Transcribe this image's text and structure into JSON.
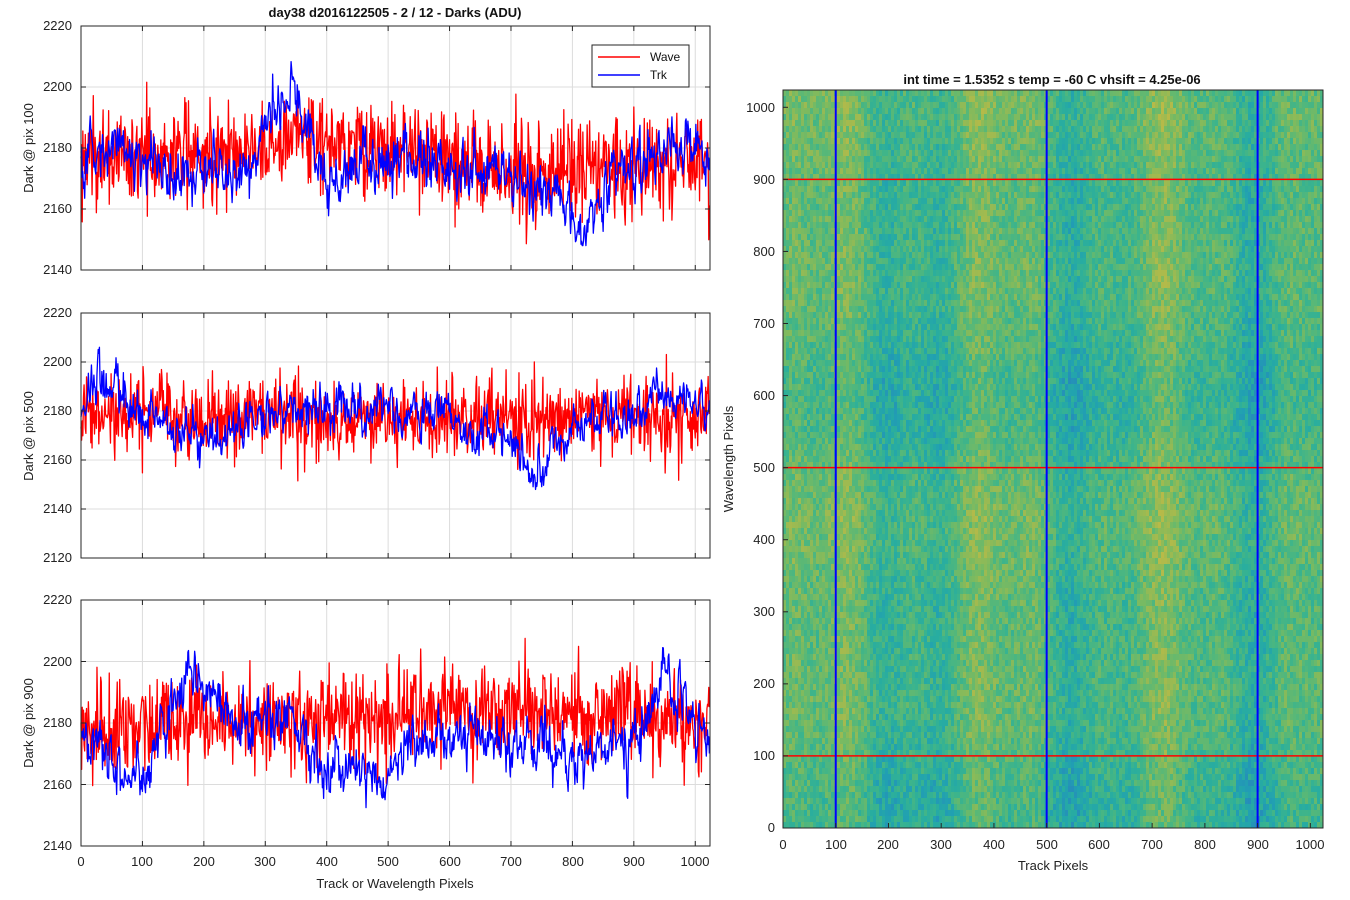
{
  "figure_title": "day38 d2016122505 - 2 / 12 - Darks (ADU)",
  "colors": {
    "wave": "#ff0000",
    "trk": "#0000ff",
    "grid": "#dcdcdc",
    "axis": "#262626"
  },
  "chart_data": [
    {
      "type": "line",
      "title": "day38 d2016122505 - 2 / 12 - Darks (ADU)",
      "xlabel": "",
      "ylabel": "Dark @ pix 100",
      "xlim": [
        0,
        1024
      ],
      "ylim": [
        2140,
        2220
      ],
      "xticks": [
        0,
        100,
        200,
        300,
        400,
        500,
        600,
        700,
        800,
        900,
        1000
      ],
      "yticks": [
        2140,
        2160,
        2180,
        2200,
        2220
      ],
      "grid": true,
      "legend": {
        "position": "top-right",
        "entries": [
          "Wave",
          "Trk"
        ]
      },
      "series": [
        {
          "name": "Wave",
          "color": "#ff0000",
          "mean": 2176,
          "noise": 10,
          "min": 2144,
          "max": 2213,
          "anchors": [
            [
              0,
              2176
            ],
            [
              300,
              2180
            ],
            [
              350,
              2185
            ],
            [
              700,
              2172
            ],
            [
              1024,
              2176
            ]
          ]
        },
        {
          "name": "Trk",
          "color": "#0000ff",
          "mean": 2178,
          "noise": 4,
          "min": 2148,
          "max": 2211,
          "anchors": [
            [
              0,
              2176
            ],
            [
              80,
              2180
            ],
            [
              150,
              2172
            ],
            [
              250,
              2170
            ],
            [
              300,
              2188
            ],
            [
              350,
              2200
            ],
            [
              400,
              2168
            ],
            [
              450,
              2176
            ],
            [
              550,
              2176
            ],
            [
              620,
              2172
            ],
            [
              700,
              2170
            ],
            [
              760,
              2165
            ],
            [
              800,
              2156
            ],
            [
              830,
              2154
            ],
            [
              880,
              2175
            ],
            [
              950,
              2180
            ],
            [
              1000,
              2185
            ],
            [
              1024,
              2175
            ]
          ]
        }
      ]
    },
    {
      "type": "line",
      "xlabel": "",
      "ylabel": "Dark @ pix 500",
      "xlim": [
        0,
        1024
      ],
      "ylim": [
        2120,
        2220
      ],
      "xticks": [
        0,
        100,
        200,
        300,
        400,
        500,
        600,
        700,
        800,
        900,
        1000
      ],
      "yticks": [
        2120,
        2140,
        2160,
        2180,
        2200,
        2220
      ],
      "grid": true,
      "series": [
        {
          "name": "Wave",
          "color": "#ff0000",
          "mean": 2177,
          "noise": 10,
          "min": 2137,
          "max": 2216,
          "anchors": [
            [
              0,
              2177
            ],
            [
              1024,
              2177
            ]
          ]
        },
        {
          "name": "Trk",
          "color": "#0000ff",
          "mean": 2178,
          "noise": 4,
          "min": 2138,
          "max": 2206,
          "anchors": [
            [
              0,
              2178
            ],
            [
              30,
              2195
            ],
            [
              80,
              2182
            ],
            [
              150,
              2174
            ],
            [
              200,
              2166
            ],
            [
              300,
              2178
            ],
            [
              400,
              2180
            ],
            [
              500,
              2180
            ],
            [
              600,
              2178
            ],
            [
              650,
              2170
            ],
            [
              700,
              2172
            ],
            [
              740,
              2148
            ],
            [
              780,
              2172
            ],
            [
              850,
              2176
            ],
            [
              950,
              2186
            ],
            [
              1024,
              2182
            ]
          ]
        }
      ]
    },
    {
      "type": "line",
      "xlabel": "Track or Wavelength Pixels",
      "ylabel": "Dark @ pix 900",
      "xlim": [
        0,
        1024
      ],
      "ylim": [
        2140,
        2220
      ],
      "xticks": [
        0,
        100,
        200,
        300,
        400,
        500,
        600,
        700,
        800,
        900,
        1000
      ],
      "yticks": [
        2140,
        2160,
        2180,
        2200,
        2220
      ],
      "grid": true,
      "series": [
        {
          "name": "Wave",
          "color": "#ff0000",
          "mean": 2180,
          "noise": 10,
          "min": 2141,
          "max": 2212,
          "anchors": [
            [
              0,
              2178
            ],
            [
              500,
              2182
            ],
            [
              600,
              2185
            ],
            [
              1024,
              2180
            ]
          ]
        },
        {
          "name": "Trk",
          "color": "#0000ff",
          "mean": 2178,
          "noise": 4,
          "min": 2147,
          "max": 2205,
          "anchors": [
            [
              0,
              2176
            ],
            [
              100,
              2160
            ],
            [
              170,
              2195
            ],
            [
              250,
              2182
            ],
            [
              350,
              2180
            ],
            [
              400,
              2165
            ],
            [
              500,
              2162
            ],
            [
              550,
              2175
            ],
            [
              650,
              2178
            ],
            [
              700,
              2176
            ],
            [
              800,
              2170
            ],
            [
              900,
              2172
            ],
            [
              950,
              2198
            ],
            [
              1024,
              2172
            ]
          ]
        }
      ]
    },
    {
      "type": "heatmap",
      "title": "int time = 1.5352 s    temp = -60 C    vhsift = 4.25e-06",
      "xlabel": "Track Pixels",
      "ylabel": "Wavelength Pixels",
      "xlim": [
        0,
        1024
      ],
      "ylim": [
        0,
        1024
      ],
      "xticks": [
        0,
        100,
        200,
        300,
        400,
        500,
        600,
        700,
        800,
        900,
        1000
      ],
      "yticks": [
        0,
        100,
        200,
        300,
        400,
        500,
        600,
        700,
        800,
        900,
        1000
      ],
      "colormap": "parula",
      "value_range_hint": "teal-green to yellow-green, mostly mid values",
      "vertical_lines": {
        "x": [
          100,
          500,
          900
        ],
        "color": "#0000ff"
      },
      "horizontal_lines": {
        "y": [
          100,
          500,
          900
        ],
        "color": "#ff0000"
      }
    }
  ]
}
